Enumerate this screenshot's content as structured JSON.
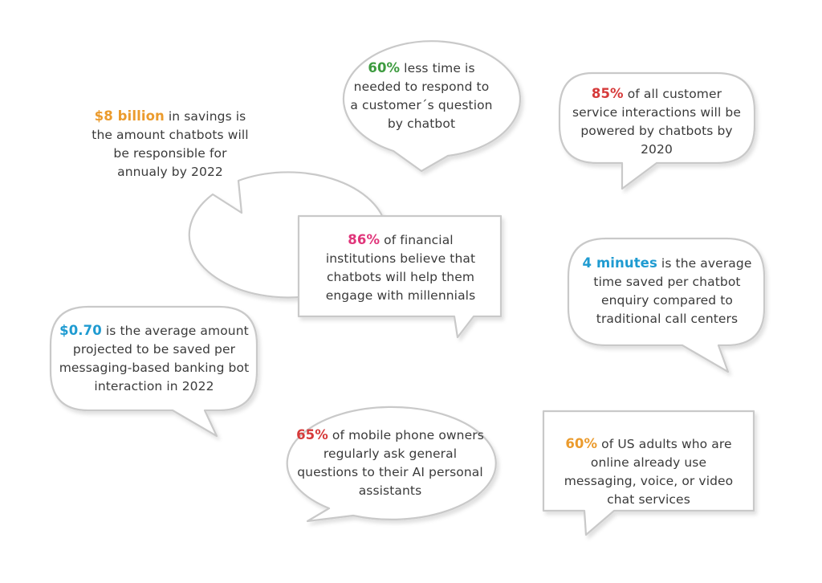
{
  "colors": {
    "orange": "#eb9b2d",
    "green": "#3d9b3f",
    "red": "#d63a3a",
    "pink": "#e0357a",
    "blue": "#1f9bd1",
    "text": "#3a3a3a",
    "bubble_border": "#c9c9c9"
  },
  "bubbles": {
    "savings": {
      "highlight": "$8 billion",
      "rest": " in savings is the amount chatbots will be responsible for annualy by 2022"
    },
    "response_time": {
      "highlight": "60%",
      "rest": " less time is needed to respond to a customer´s question by chatbot"
    },
    "customer_service": {
      "highlight": "85%",
      "rest": " of all customer service interactions will be powered by chatbots by 2020"
    },
    "financial": {
      "highlight": "86%",
      "rest": " of financial institutions believe that chatbots will help them engage with millennials"
    },
    "minutes": {
      "highlight": "4 minutes",
      "rest": " is the average time saved per chatbot enquiry compared to traditional call centers"
    },
    "banking": {
      "highlight": "$0.70",
      "rest": " is the average amount projected to be saved per messaging-based banking bot interaction in 2022"
    },
    "mobile": {
      "highlight": "65%",
      "rest": " of mobile phone owners regularly ask general questions to their AI personal assistants"
    },
    "us_adults": {
      "highlight": "60%",
      "rest": " of US adults who are online already use messaging, voice, or video chat services"
    }
  }
}
